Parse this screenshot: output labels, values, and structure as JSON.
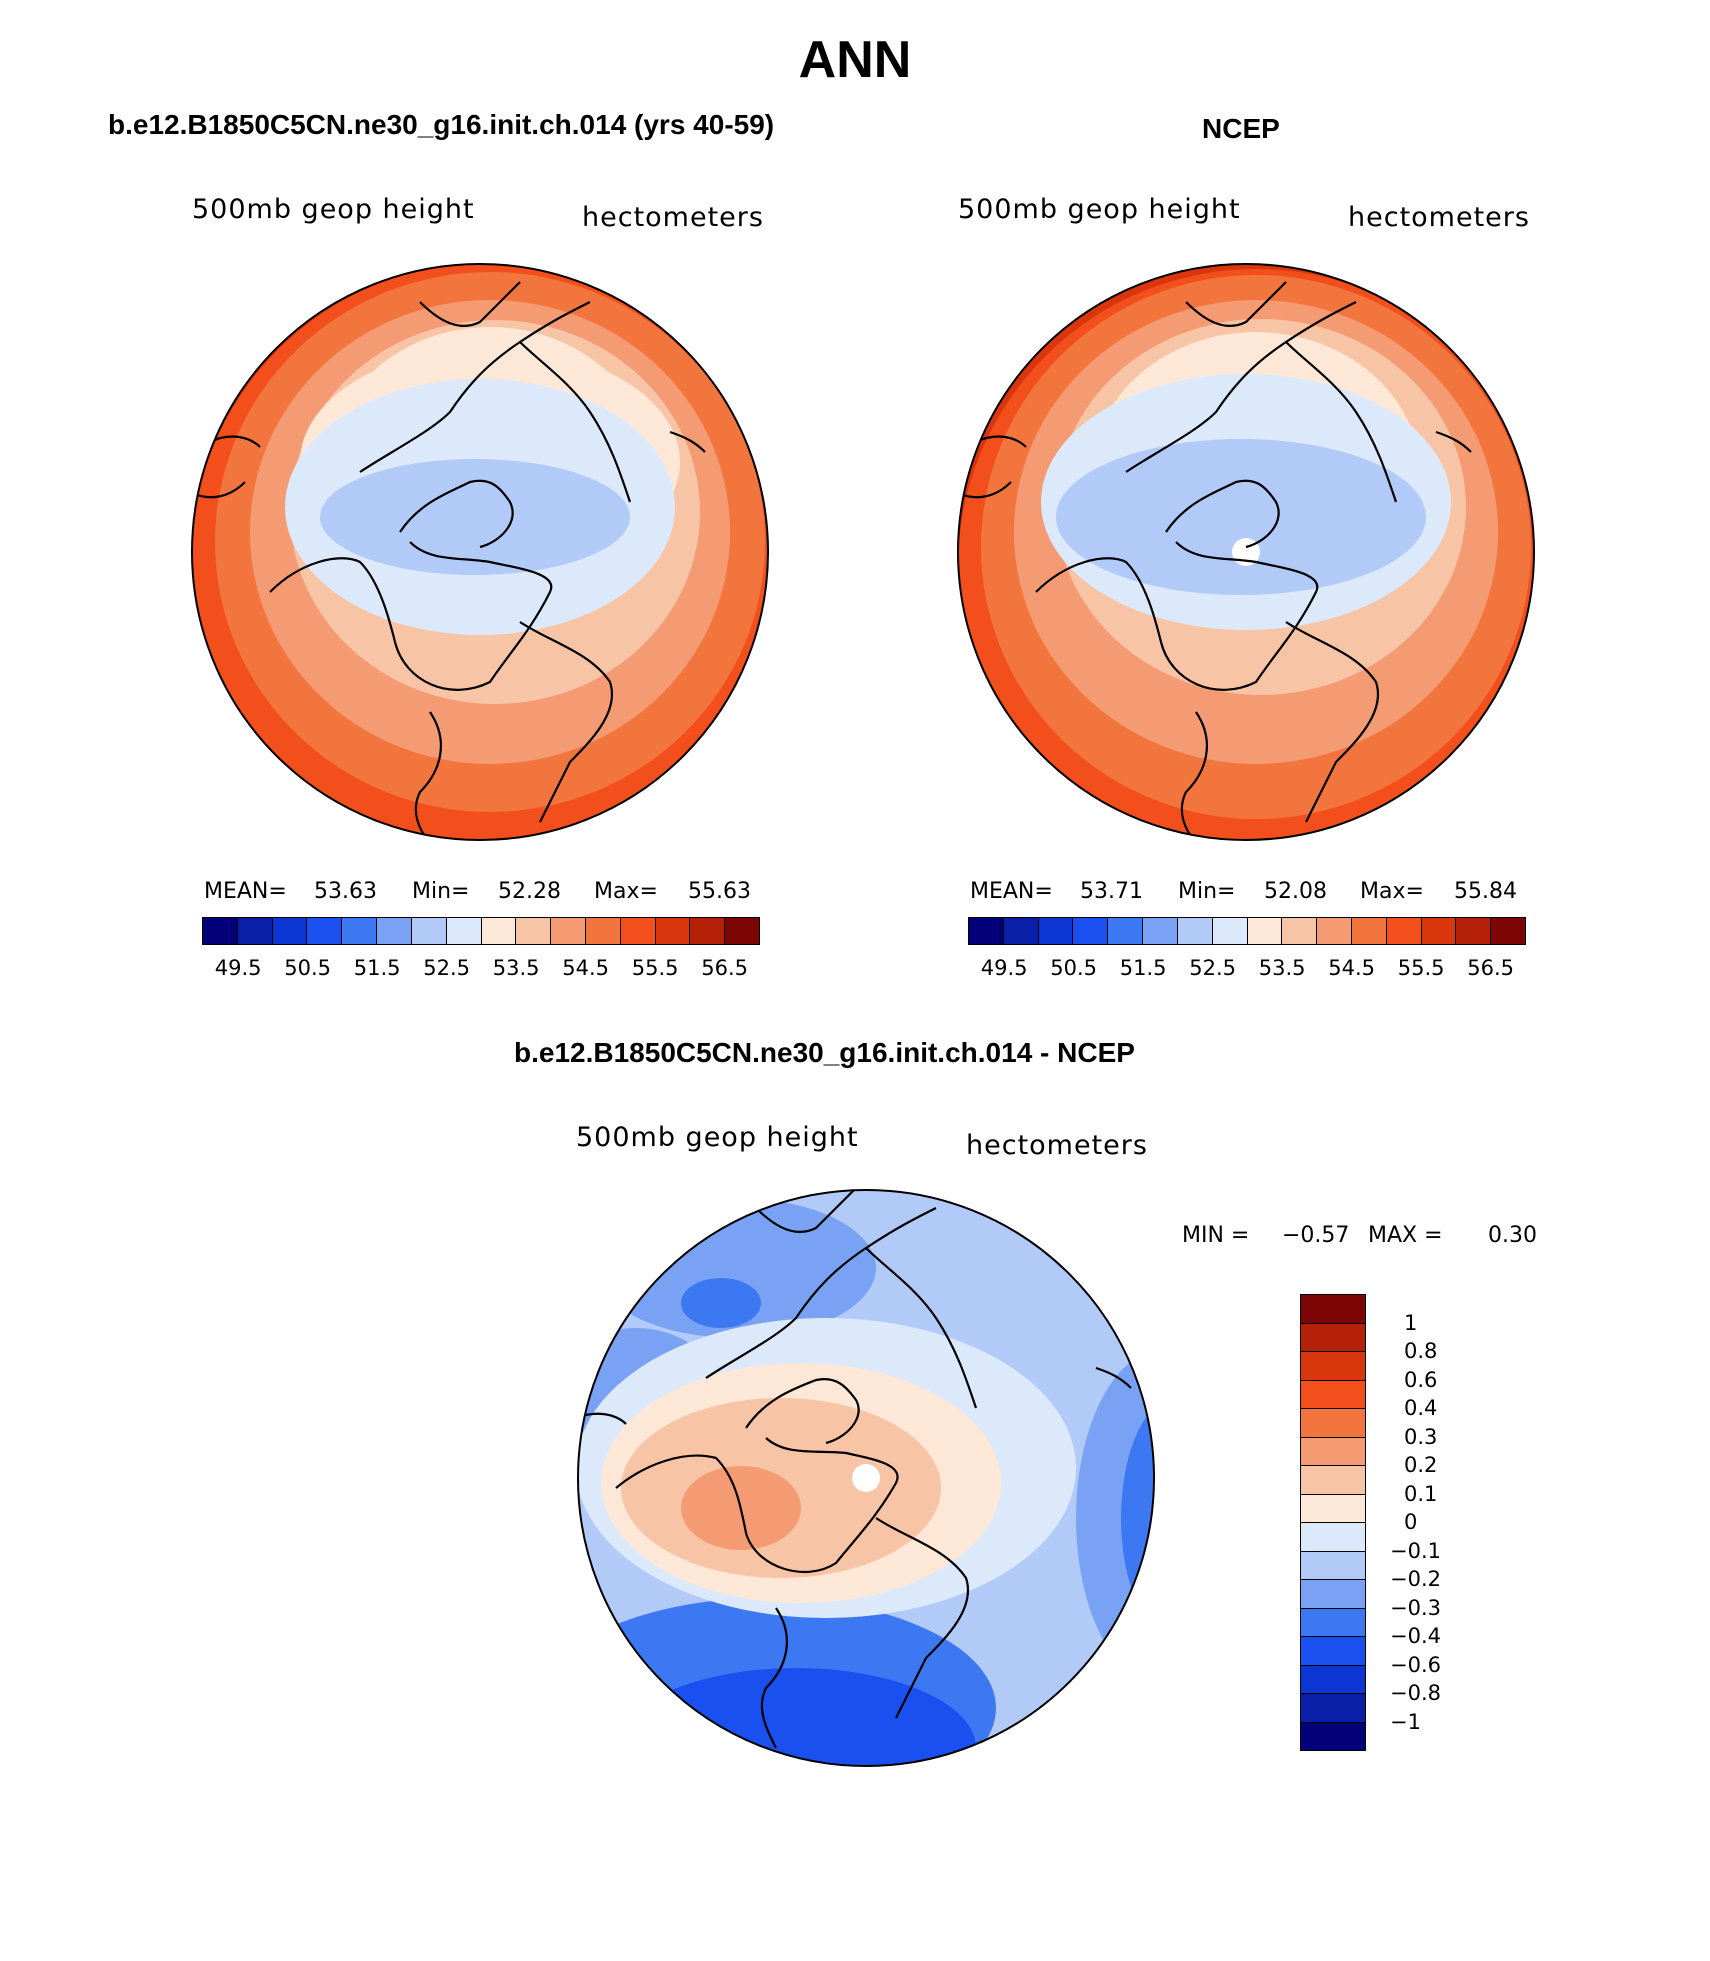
{
  "title": "ANN",
  "palette": {
    "abs": [
      "#04007a",
      "#0a1fa8",
      "#0c36d4",
      "#1a50f0",
      "#3c78f2",
      "#7aa2f4",
      "#b2caf8",
      "#dbe9fb",
      "#fde8d8",
      "#f8c4a6",
      "#f59b74",
      "#f3753e",
      "#f24f1c",
      "#d9360e",
      "#b52108",
      "#7e0505"
    ],
    "diff": [
      "#7e0505",
      "#b52108",
      "#d9360e",
      "#f24f1c",
      "#f3753e",
      "#f59b74",
      "#f8c4a6",
      "#fde8d8",
      "#dbe9fb",
      "#b2caf8",
      "#7aa2f4",
      "#3c78f2",
      "#1a50f0",
      "#0c36d4",
      "#0a1fa8",
      "#04007a"
    ]
  },
  "panels": {
    "model": {
      "title": "b.e12.B1850C5CN.ne30_g16.init.ch.014 (yrs 40-59)",
      "left_label": "500mb geop height",
      "right_label": "hectometers",
      "stats": {
        "mean_label": "MEAN=",
        "mean": "53.63",
        "min_label": "Min=",
        "min": "52.28",
        "max_label": "Max=",
        "max": "55.63"
      },
      "colorbar_ticks": [
        "49.5",
        "50.5",
        "51.5",
        "52.5",
        "53.5",
        "54.5",
        "55.5",
        "56.5"
      ],
      "colorbar_boxes": 16
    },
    "obs": {
      "title": "NCEP",
      "left_label": "500mb geop height",
      "right_label": "hectometers",
      "stats": {
        "mean_label": "MEAN=",
        "mean": "53.71",
        "min_label": "Min=",
        "min": "52.08",
        "max_label": "Max=",
        "max": "55.84"
      },
      "colorbar_ticks": [
        "49.5",
        "50.5",
        "51.5",
        "52.5",
        "53.5",
        "54.5",
        "55.5",
        "56.5"
      ],
      "colorbar_boxes": 16
    },
    "diff": {
      "title": "b.e12.B1850C5CN.ne30_g16.init.ch.014 - NCEP",
      "left_label": "500mb geop height",
      "right_label": "hectometers",
      "stats": {
        "min_label": "MIN =",
        "min": "−0.57",
        "max_label": "MAX =",
        "max": "0.30"
      },
      "colorbar_labels": [
        "1",
        "0.8",
        "0.6",
        "0.4",
        "0.3",
        "0.2",
        "0.1",
        "0",
        "−0.1",
        "−0.2",
        "−0.3",
        "−0.4",
        "−0.6",
        "−0.8",
        "−1"
      ]
    }
  }
}
